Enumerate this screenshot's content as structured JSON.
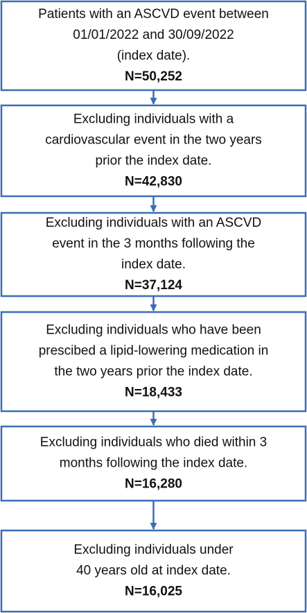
{
  "nodes": [
    {
      "lines": [
        "Patients with an ASCVD event between",
        "01/01/2022 and 30/09/2022",
        "(index date)."
      ],
      "count": "N=50,252"
    },
    {
      "lines": [
        "Excluding individuals with a",
        "cardiovascular event in the two years",
        "prior the index date."
      ],
      "count": "N=42,830"
    },
    {
      "lines": [
        "Excluding individuals with an ASCVD",
        "event in the 3 months following the",
        "index date."
      ],
      "count": "N=37,124"
    },
    {
      "lines": [
        "Excluding individuals who have been",
        "prescibed a lipid-lowering medication in",
        "the two years prior the index date."
      ],
      "count": "N=18,433"
    },
    {
      "lines": [
        "Excluding individuals who died within 3",
        "months following the index date."
      ],
      "count": "N=16,280"
    },
    {
      "lines": [
        "Excluding individuals under",
        "40 years old at index date."
      ],
      "count": "N=16,025"
    }
  ]
}
